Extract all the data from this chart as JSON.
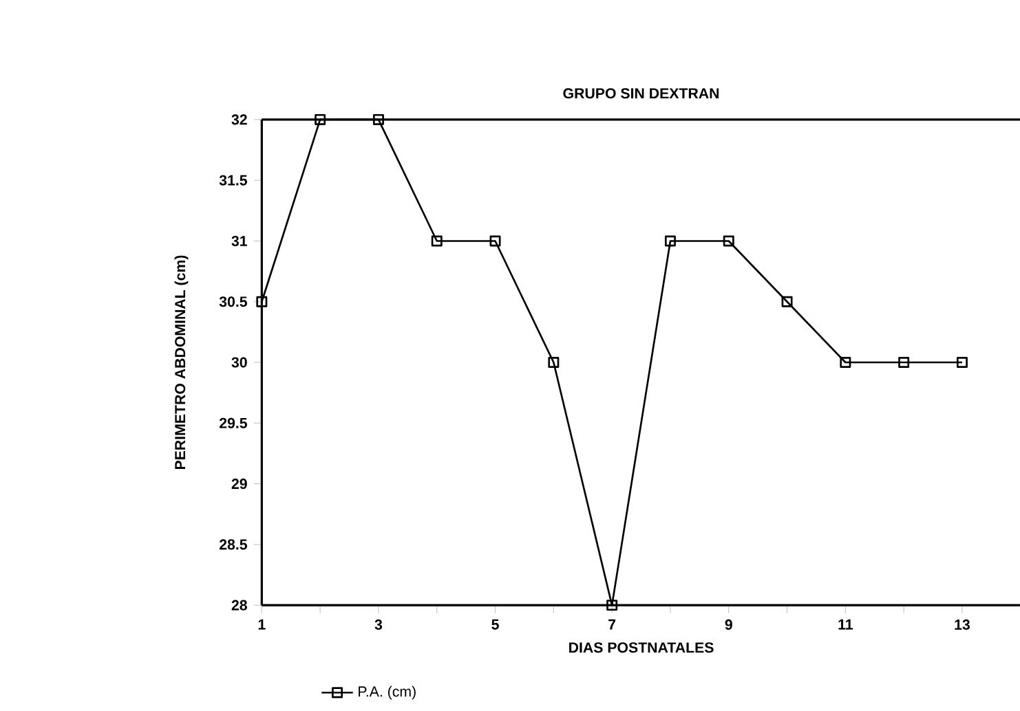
{
  "chart_data": {
    "type": "line",
    "title": "GRUPO SIN DEXTRAN",
    "xlabel": "DIAS POSTNATALES",
    "ylabel": "PERIMETRO ABDOMINAL (cm)",
    "x": [
      1,
      2,
      3,
      4,
      5,
      6,
      7,
      8,
      9,
      10,
      11,
      12,
      13
    ],
    "series": [
      {
        "name": "P.A. (cm)",
        "color": "#000000",
        "values": [
          30.5,
          32,
          32,
          31,
          31,
          30,
          28,
          31,
          31,
          30.5,
          30,
          30,
          30
        ]
      }
    ],
    "xlim": [
      1,
      14
    ],
    "xticks": [
      1,
      {
        "value": 2,
        "label": null
      },
      3,
      {
        "value": 4,
        "label": null
      },
      5,
      {
        "value": 6,
        "label": null
      },
      7,
      {
        "value": 8,
        "label": null
      },
      9,
      {
        "value": 10,
        "label": null
      },
      11,
      {
        "value": 12,
        "label": null
      },
      13
    ],
    "ylim": [
      28,
      32
    ],
    "yticks": [
      28,
      28.5,
      29,
      29.5,
      30,
      30.5,
      31,
      31.5,
      32
    ],
    "marker": "square",
    "line_style": "solid",
    "legend": "bottom",
    "grid": false
  }
}
